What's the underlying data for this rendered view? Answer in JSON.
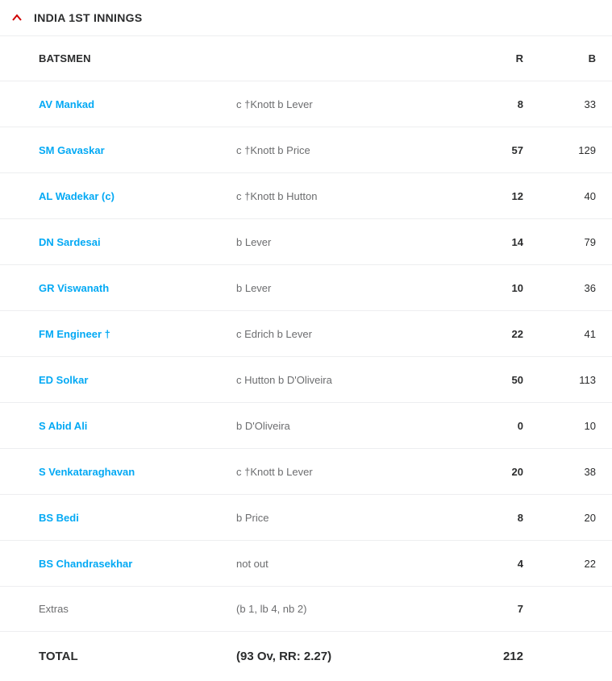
{
  "header": {
    "title": "INDIA 1ST INNINGS"
  },
  "columns": {
    "name": "BATSMEN",
    "r": "R",
    "b": "B"
  },
  "rows": [
    {
      "name": "AV Mankad",
      "dismissal": "c †Knott b Lever",
      "r": "8",
      "b": "33"
    },
    {
      "name": "SM Gavaskar",
      "dismissal": "c †Knott b Price",
      "r": "57",
      "b": "129"
    },
    {
      "name": "AL Wadekar (c)",
      "dismissal": "c †Knott b Hutton",
      "r": "12",
      "b": "40"
    },
    {
      "name": "DN Sardesai",
      "dismissal": "b Lever",
      "r": "14",
      "b": "79"
    },
    {
      "name": "GR Viswanath",
      "dismissal": "b Lever",
      "r": "10",
      "b": "36"
    },
    {
      "name": "FM Engineer †",
      "dismissal": "c Edrich b Lever",
      "r": "22",
      "b": "41"
    },
    {
      "name": "ED Solkar",
      "dismissal": "c Hutton b D'Oliveira",
      "r": "50",
      "b": "113"
    },
    {
      "name": "S Abid Ali",
      "dismissal": "b D'Oliveira",
      "r": "0",
      "b": "10"
    },
    {
      "name": "S Venkataraghavan",
      "dismissal": "c †Knott b Lever",
      "r": "20",
      "b": "38"
    },
    {
      "name": "BS Bedi",
      "dismissal": "b Price",
      "r": "8",
      "b": "20"
    },
    {
      "name": "BS Chandrasekhar",
      "dismissal": "not out",
      "r": "4",
      "b": "22"
    }
  ],
  "extras": {
    "label": "Extras",
    "detail": "(b 1, lb 4, nb 2)",
    "r": "7"
  },
  "total": {
    "label": "TOTAL",
    "detail": "(93 Ov, RR: 2.27)",
    "r": "212"
  },
  "colors": {
    "link": "#03a9f4",
    "accent": "#d00000",
    "border": "#edeef0",
    "muted": "#6c6d6f",
    "text": "#2b2c2d"
  }
}
